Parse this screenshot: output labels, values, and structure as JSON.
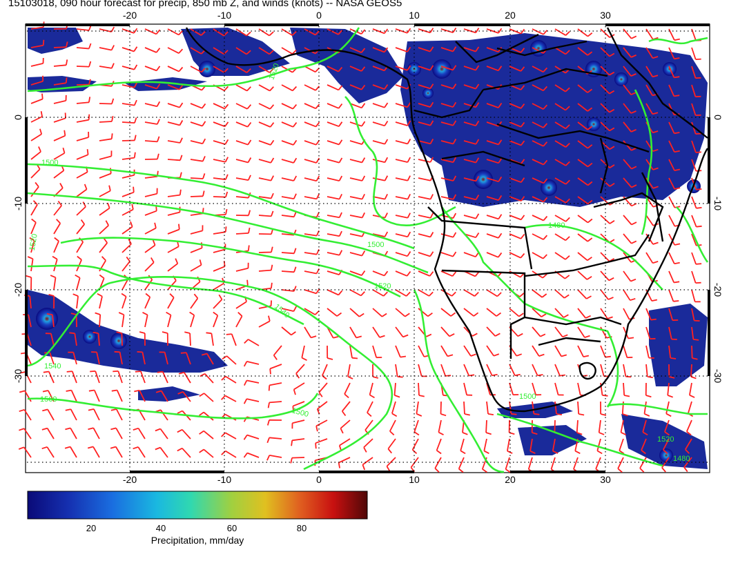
{
  "title": "15103018, 090 hour forecast for precip, 850 mb Z, and winds (knots) -- NASA GEOS5",
  "map": {
    "longitude_ticks": [
      "-20",
      "-10",
      "0",
      "10",
      "20",
      "30"
    ],
    "latitude_ticks": [
      "0",
      "-10",
      "-20",
      "-30"
    ],
    "contour_labels": [
      "1500",
      "1520",
      "1540",
      "1560",
      "1480"
    ],
    "colors": {
      "wind_barbs": "#ff2020",
      "height_contours": "#33ee33",
      "coastline": "#000000",
      "ocean": "#ffffff"
    }
  },
  "colorbar": {
    "ticks": [
      "20",
      "40",
      "60",
      "80"
    ],
    "label": "Precipitation, mm/day",
    "colors": [
      "#0a0a78",
      "#1a3ad0",
      "#1aa0e0",
      "#20d0c0",
      "#70d060",
      "#d0d020",
      "#e08020",
      "#d02010",
      "#6a0a0a"
    ]
  }
}
